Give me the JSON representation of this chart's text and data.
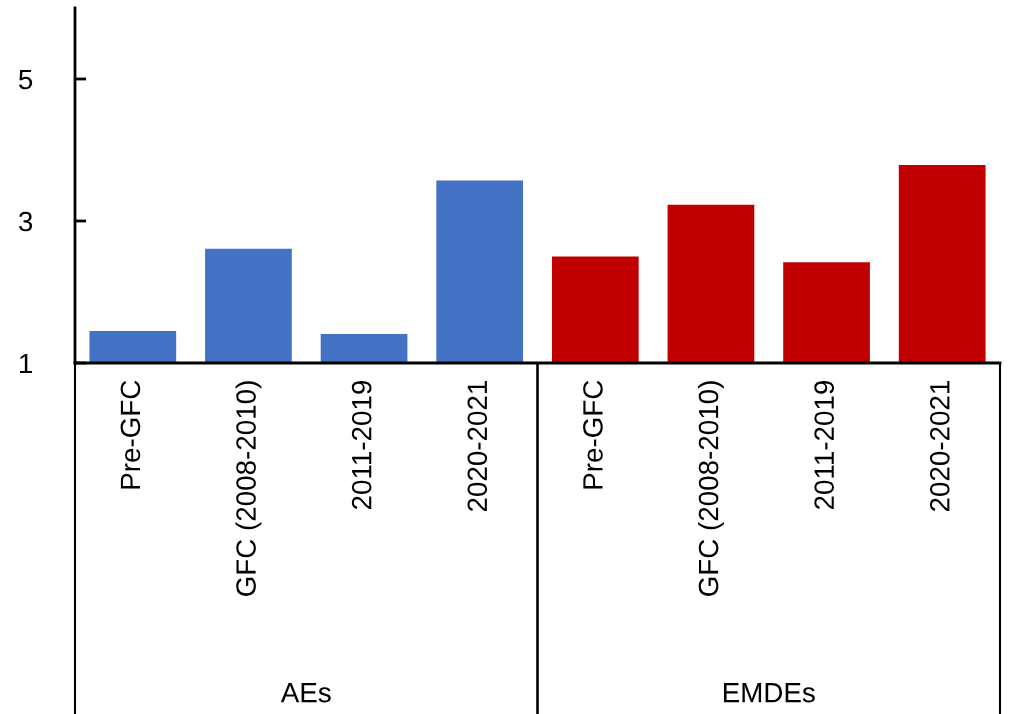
{
  "chart_data": {
    "type": "bar",
    "categories": [
      "Pre-GFC",
      "GFC (2008-2010)",
      "2011-2019",
      "2020-2021",
      "Pre-GFC",
      "GFC (2008-2010)",
      "2011-2019",
      "2020-2021"
    ],
    "values": [
      1.45,
      2.61,
      1.41,
      3.57,
      2.5,
      3.23,
      2.42,
      3.79
    ],
    "colors": [
      "#4472c4",
      "#4472c4",
      "#4472c4",
      "#4472c4",
      "#c00000",
      "#c00000",
      "#c00000",
      "#c00000"
    ],
    "annotations": [
      "AEs",
      "EMDEs"
    ],
    "ylim": [
      1,
      6
    ],
    "yticks": [
      1,
      3,
      5
    ],
    "grid": false,
    "legend": false
  }
}
